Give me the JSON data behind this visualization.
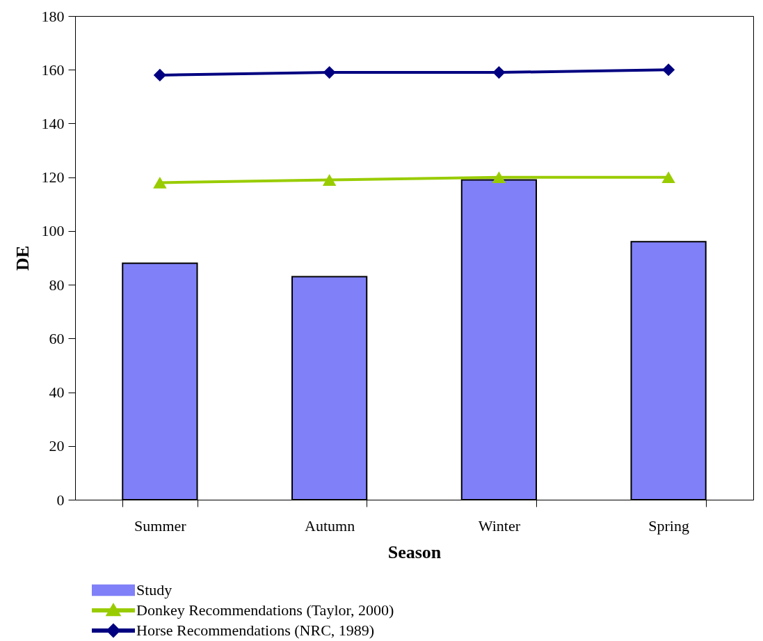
{
  "chart_data": {
    "type": "bar",
    "xlabel": "Season",
    "ylabel": "DE",
    "categories": [
      "Summer",
      "Autumn",
      "Winter",
      "Spring"
    ],
    "series": [
      {
        "name": "Study",
        "color": "#8080f8",
        "values": [
          88,
          83,
          119,
          96
        ]
      },
      {
        "name": "Donkey Recommendations (Taylor, 2000)",
        "type": "line",
        "marker": "triangle",
        "color": "#99cc00",
        "values": [
          118,
          119,
          120,
          120
        ]
      },
      {
        "name": "Horse Recommendations  (NRC, 1989)",
        "type": "line",
        "marker": "diamond",
        "color": "#000080",
        "values": [
          158,
          159,
          159,
          160
        ]
      }
    ],
    "ylim": [
      0,
      180
    ],
    "yticks": [
      0,
      20,
      40,
      60,
      80,
      100,
      120,
      140,
      160,
      180
    ],
    "legend": "bottom left"
  }
}
